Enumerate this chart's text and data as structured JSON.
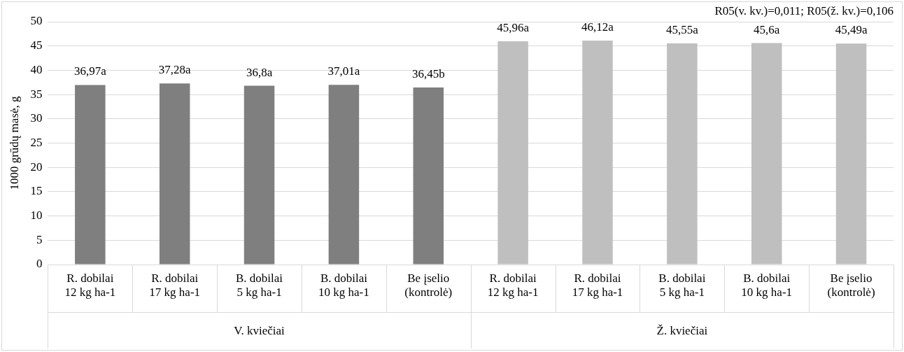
{
  "chart_data": {
    "type": "bar",
    "ylabel": "1000 grūdų masė, g",
    "categories": [
      "R. dobilai 12 kg ha-1",
      "R. dobilai 17 kg ha-1",
      "B. dobilai 5 kg ha-1",
      "B. dobilai 10 kg ha-1",
      "Be įselio (kontrolė)",
      "R. dobilai 12 kg ha-1",
      "R. dobilai 17 kg ha-1",
      "B. dobilai 5 kg ha-1",
      "B. dobilai 10 kg ha-1",
      "Be įselio (kontrolė)"
    ],
    "values": [
      36.97,
      37.28,
      36.8,
      37.01,
      36.45,
      45.96,
      46.12,
      45.55,
      45.6,
      45.49
    ],
    "value_labels": [
      "36,97a",
      "37,28a",
      "36,8a",
      "37,01a",
      "36,45b",
      "45,96a",
      "46,12a",
      "45,55a",
      "45,6a",
      "45,49a"
    ],
    "colors": [
      "#7f7f7f",
      "#7f7f7f",
      "#7f7f7f",
      "#7f7f7f",
      "#7f7f7f",
      "#bfbfbf",
      "#bfbfbf",
      "#bfbfbf",
      "#bfbfbf",
      "#bfbfbf"
    ],
    "ylim": [
      0,
      50
    ],
    "yticks": [
      0,
      5,
      10,
      15,
      20,
      25,
      30,
      35,
      40,
      45,
      50
    ],
    "grid": "y",
    "legend": false,
    "annotations": [
      "R05(v. kv.)=0,011; R05(ž. kv.)=0,106",
      "V. kviečiai",
      "Ž. kviečiai"
    ]
  }
}
